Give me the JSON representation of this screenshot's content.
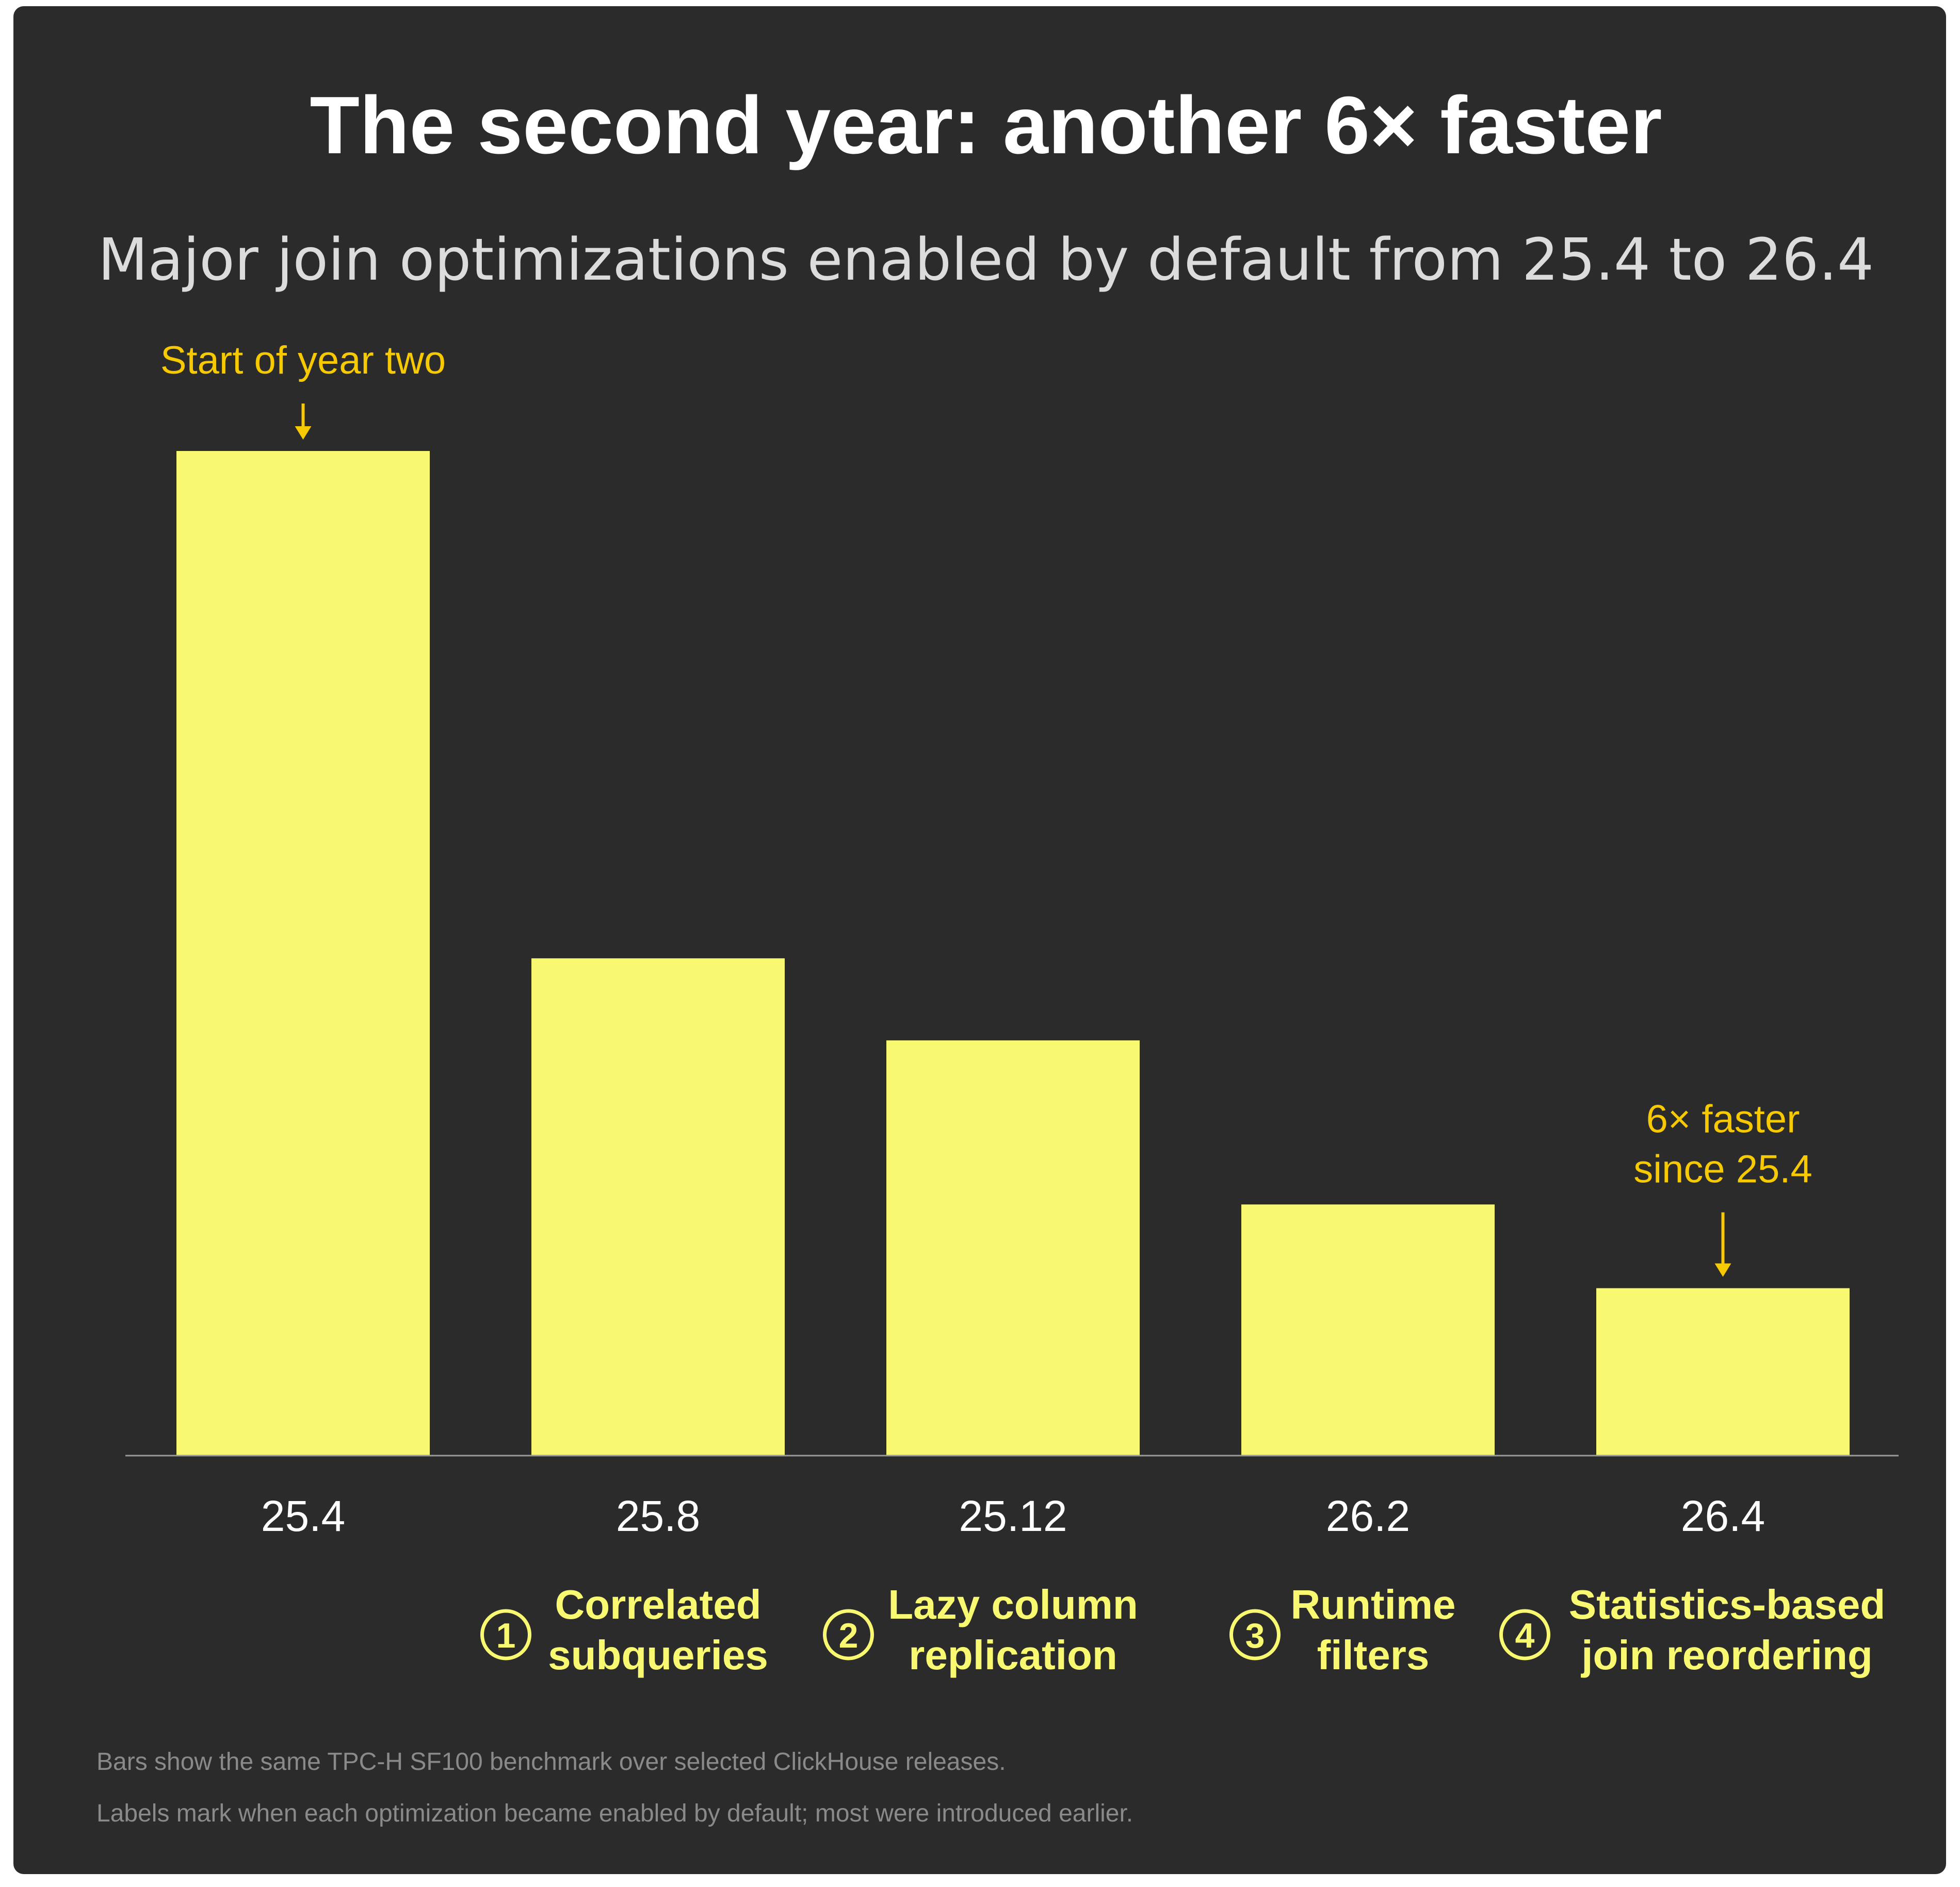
{
  "chart_data": {
    "type": "bar",
    "title": "The second year: another 6× faster",
    "subtitle": "Major join optimizations enabled by default from 25.4 to 26.4",
    "categories": [
      "25.4",
      "25.8",
      "25.12",
      "26.2",
      "26.4"
    ],
    "values": [
      6.0,
      2.97,
      2.48,
      1.5,
      1.0
    ],
    "value_note": "Relative bar heights (26.4 = 1); no value axis is printed",
    "ylim": [
      0,
      6.0
    ],
    "grid": false,
    "bar_color": "#f9f871",
    "optimizations": [
      {
        "category": "25.8",
        "number": "1",
        "lines": [
          "Correlated",
          "subqueries"
        ]
      },
      {
        "category": "25.12",
        "number": "2",
        "lines": [
          "Lazy column",
          "replication"
        ]
      },
      {
        "category": "26.2",
        "number": "3",
        "lines": [
          "Runtime",
          "filters"
        ]
      },
      {
        "category": "26.4",
        "number": "4",
        "lines": [
          "Statistics-based",
          "join reordering"
        ]
      }
    ],
    "annotations": [
      {
        "category": "25.4",
        "lines": [
          "Start of year two"
        ]
      },
      {
        "category": "26.4",
        "lines": [
          "6× faster",
          "since 25.4"
        ]
      }
    ],
    "footnotes": [
      "Bars show the same TPC-H SF100 benchmark over selected ClickHouse releases.",
      "Labels mark when each optimization became enabled by default; most were introduced earlier."
    ]
  },
  "colors": {
    "background": "#2b2b2b",
    "bar": "#f9f871",
    "annotation": "#f6c900",
    "title": "#ffffff",
    "subtitle": "#dcdcdc",
    "footnote": "#8a8a8a",
    "axis": "#9a9a9a"
  }
}
